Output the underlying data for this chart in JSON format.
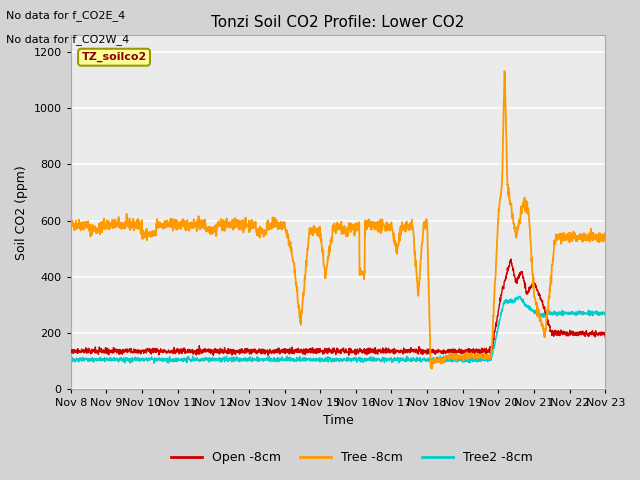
{
  "title": "Tonzi Soil CO2 Profile: Lower CO2",
  "xlabel": "Time",
  "ylabel": "Soil CO2 (ppm)",
  "ylim": [
    0,
    1260
  ],
  "yticks": [
    0,
    200,
    400,
    600,
    800,
    1000,
    1200
  ],
  "xtick_labels": [
    "Nov 8",
    "Nov 9",
    "Nov 10",
    "Nov 11",
    "Nov 12",
    "Nov 13",
    "Nov 14",
    "Nov 15",
    "Nov 16",
    "Nov 17",
    "Nov 18",
    "Nov 19",
    "Nov 20",
    "Nov 21",
    "Nov 22",
    "Nov 23"
  ],
  "fig_bg_color": "#d3d3d3",
  "plot_bg_color": "#ebebeb",
  "no_data_text": [
    "No data for f_CO2E_4",
    "No data for f_CO2W_4"
  ],
  "legend_box_text": "TZ_soilco2",
  "legend_box_color": "#ffff99",
  "legend_box_border": "#999900",
  "colors": {
    "open": "#cc0000",
    "tree": "#ff9900",
    "tree2": "#00cccc"
  },
  "legend_labels": [
    "Open -8cm",
    "Tree -8cm",
    "Tree2 -8cm"
  ],
  "line_widths": {
    "open": 1.0,
    "tree": 1.3,
    "tree2": 1.0
  }
}
